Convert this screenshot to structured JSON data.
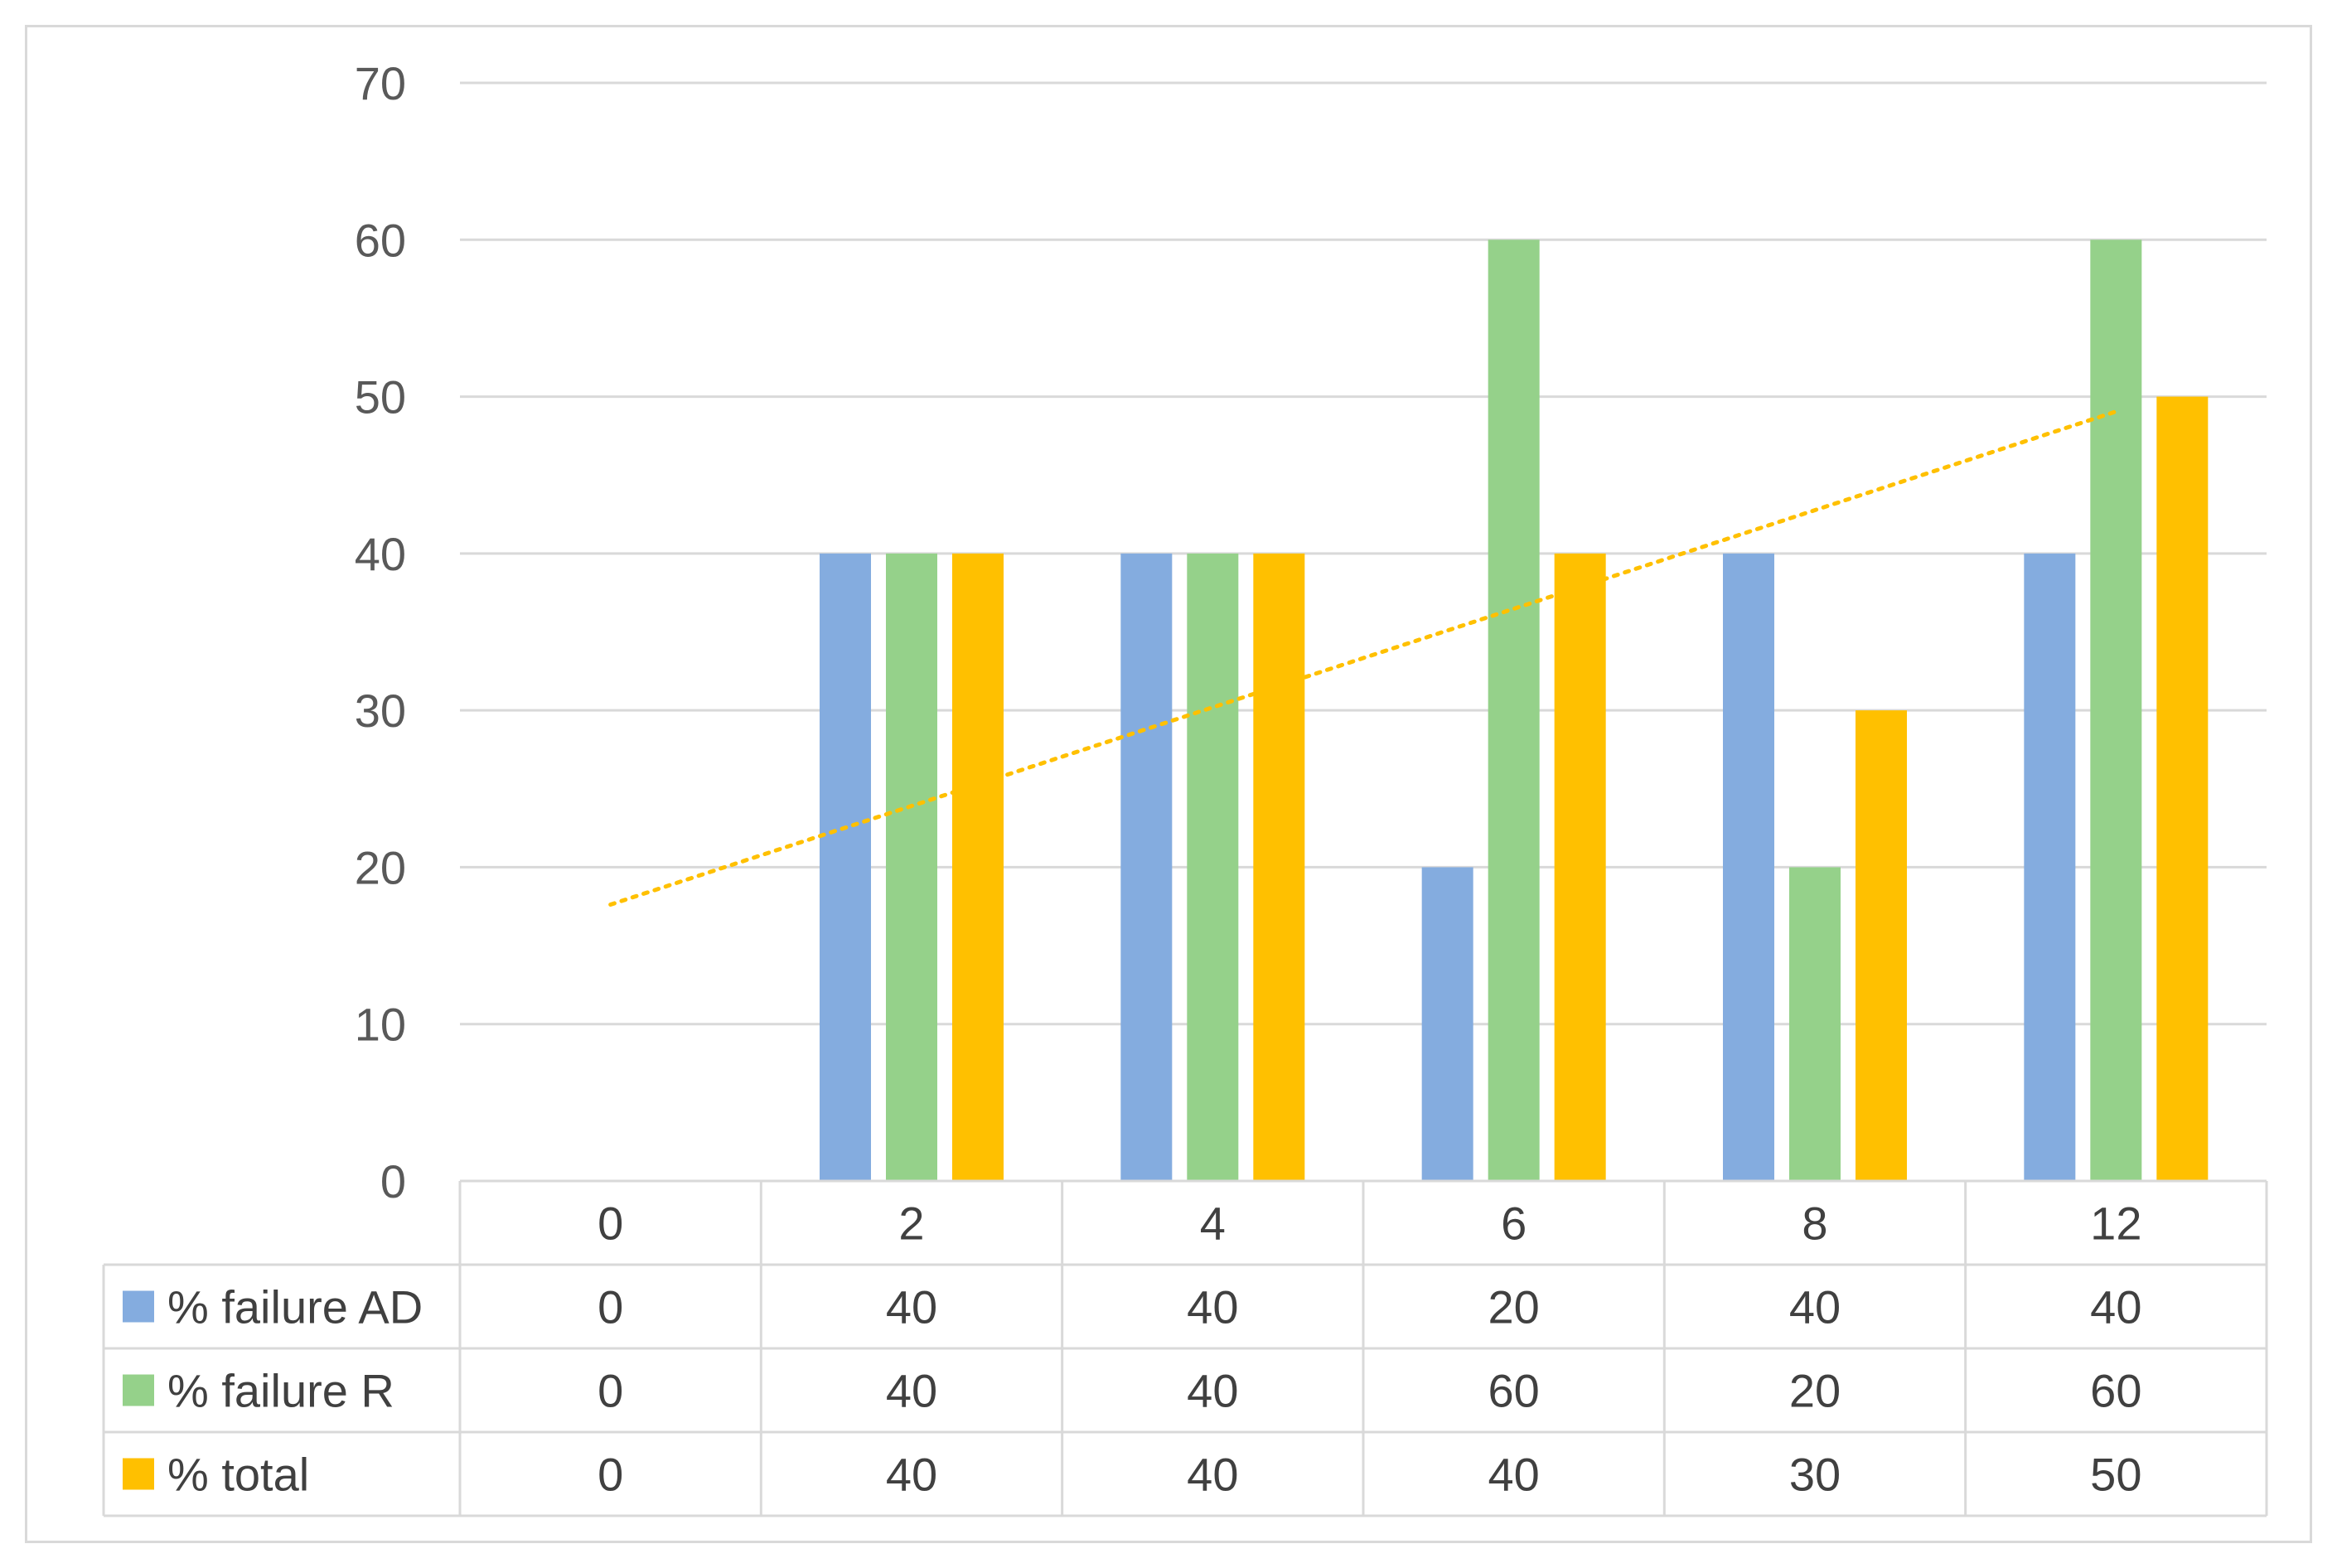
{
  "chart_data": {
    "type": "bar",
    "categories": [
      "0",
      "2",
      "4",
      "6",
      "8",
      "12"
    ],
    "series": [
      {
        "name": "% failure AD",
        "color": "#84acdf",
        "values": [
          0,
          40,
          40,
          20,
          40,
          40
        ]
      },
      {
        "name": "% failure R",
        "color": "#95d18a",
        "values": [
          0,
          40,
          40,
          60,
          20,
          60
        ]
      },
      {
        "name": "% total",
        "color": "#ffc000",
        "values": [
          0,
          40,
          40,
          40,
          30,
          50
        ]
      }
    ],
    "ylim": [
      0,
      70
    ],
    "yticks": [
      0,
      10,
      20,
      30,
      40,
      50,
      60,
      70
    ],
    "grid": true,
    "data_table": true,
    "trendline": {
      "series": "% total",
      "type": "linear",
      "style": "dotted",
      "color": "#ffc000"
    }
  }
}
